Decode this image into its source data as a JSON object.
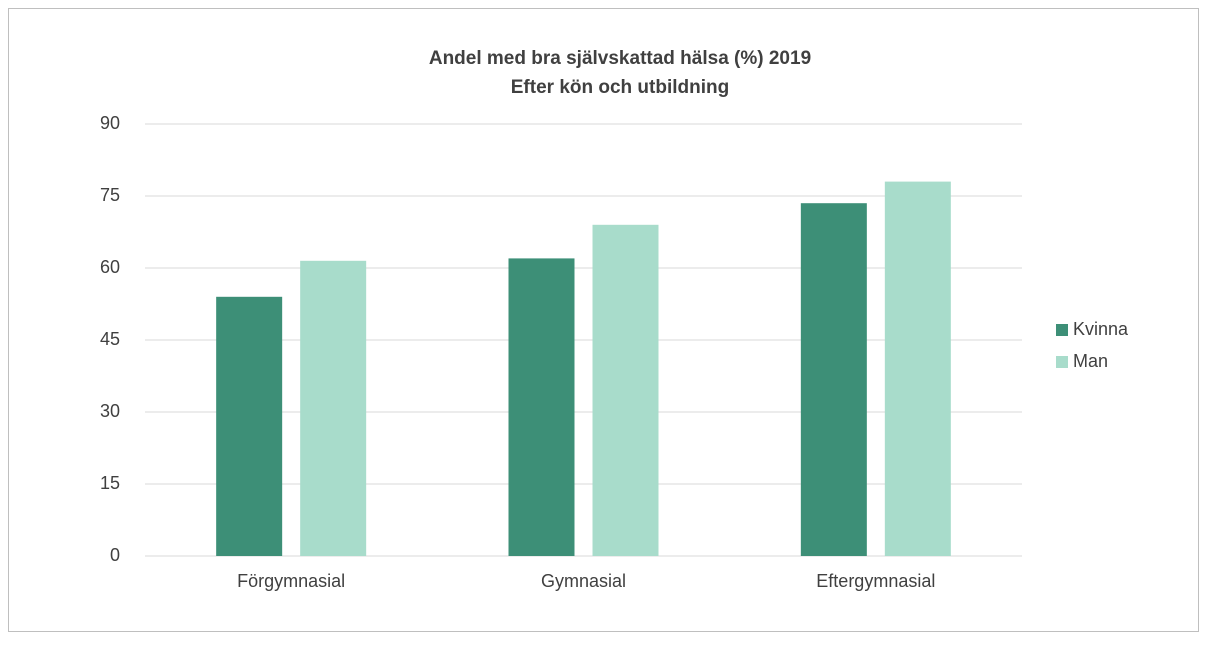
{
  "chart_data": {
    "type": "bar",
    "title": "Andel med bra självskattad hälsa (%) 2019",
    "subtitle": "Efter kön och utbildning",
    "categories": [
      "Förgymnasial",
      "Gymnasial",
      "Eftergymnasial"
    ],
    "series": [
      {
        "name": "Kvinna",
        "color": "#3d8f77",
        "values": [
          54,
          62,
          73.5
        ]
      },
      {
        "name": "Man",
        "color": "#a8dccb",
        "values": [
          61.5,
          69,
          78
        ]
      }
    ],
    "ylim": [
      0,
      90
    ],
    "yticks": [
      0,
      15,
      30,
      45,
      60,
      75,
      90
    ],
    "grid": true,
    "legend": "right"
  }
}
